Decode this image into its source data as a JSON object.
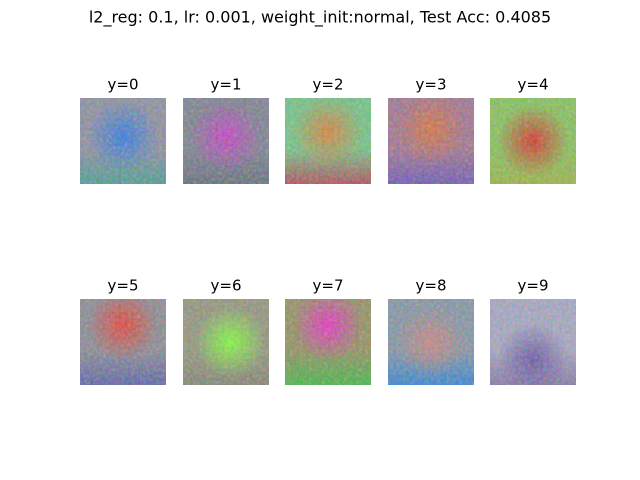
{
  "title": "l2_reg: 0.1, lr: 0.001, weight_init:normal, Test Acc: 0.4085",
  "panels": [
    "y=0",
    "y=1",
    "y=2",
    "y=3",
    "y=4",
    "y=5",
    "y=6",
    "y=7",
    "y=8",
    "y=9"
  ]
}
